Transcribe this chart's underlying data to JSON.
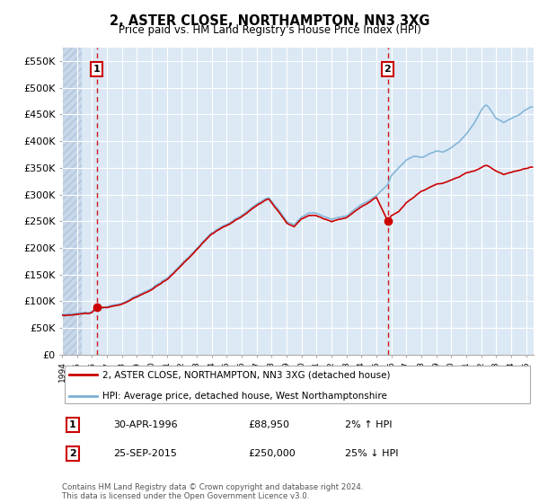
{
  "title": "2, ASTER CLOSE, NORTHAMPTON, NN3 3XG",
  "subtitle": "Price paid vs. HM Land Registry's House Price Index (HPI)",
  "ylim": [
    0,
    575000
  ],
  "yticks": [
    0,
    50000,
    100000,
    150000,
    200000,
    250000,
    300000,
    350000,
    400000,
    450000,
    500000,
    550000
  ],
  "ytick_labels": [
    "£0",
    "£50K",
    "£100K",
    "£150K",
    "£200K",
    "£250K",
    "£300K",
    "£350K",
    "£400K",
    "£450K",
    "£500K",
    "£550K"
  ],
  "background_color": "#ffffff",
  "plot_bg_color": "#dce9f5",
  "grid_color": "#ffffff",
  "sale1_x": 1996.33,
  "sale1_y": 88950,
  "sale2_x": 2015.75,
  "sale2_y": 250000,
  "line_color_property": "#cc0000",
  "line_color_hpi": "#7ab0d4",
  "marker_color": "#cc0000",
  "dashed_line_color": "#cc0000",
  "legend_label_property": "2, ASTER CLOSE, NORTHAMPTON, NN3 3XG (detached house)",
  "legend_label_hpi": "HPI: Average price, detached house, West Northamptonshire",
  "sale_info": [
    {
      "num": "1",
      "date": "30-APR-1996",
      "price": "£88,950",
      "hpi": "2% ↑ HPI"
    },
    {
      "num": "2",
      "date": "25-SEP-2015",
      "price": "£250,000",
      "hpi": "25% ↓ HPI"
    }
  ],
  "footer": "Contains HM Land Registry data © Crown copyright and database right 2024.\nThis data is licensed under the Open Government Licence v3.0.",
  "xmin": 1994.0,
  "xmax": 2025.5
}
